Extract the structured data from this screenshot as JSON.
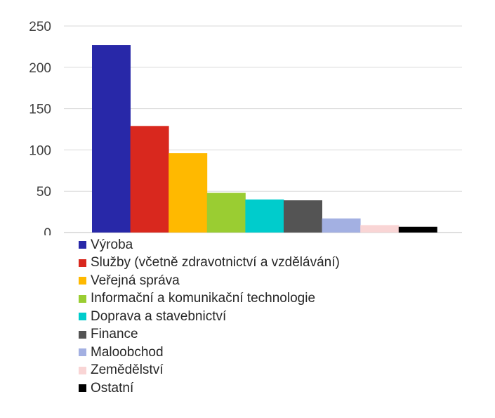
{
  "chart_data": {
    "type": "bar",
    "title": "",
    "xlabel": "",
    "ylabel": "",
    "ylim": [
      0,
      250
    ],
    "yticks": [
      0,
      50,
      100,
      150,
      200,
      250
    ],
    "grid": true,
    "legend_position": "bottom",
    "series": [
      {
        "name": "Výroba",
        "value": 227,
        "color": "#2828a8"
      },
      {
        "name": "Služby (včetně zdravotnictví a vzdělávání)",
        "value": 129,
        "color": "#d9281e"
      },
      {
        "name": "Veřejná správa",
        "value": 96,
        "color": "#ffb900"
      },
      {
        "name": "Informační a komunikační technologie",
        "value": 48,
        "color": "#9acd32"
      },
      {
        "name": "Doprava a stavebnictví",
        "value": 40,
        "color": "#00cccc"
      },
      {
        "name": "Finance",
        "value": 39,
        "color": "#545454"
      },
      {
        "name": "Maloobchod",
        "value": 17,
        "color": "#a3b0e2"
      },
      {
        "name": "Zemědělství",
        "value": 9,
        "color": "#f9d5d5"
      },
      {
        "name": "Ostatní",
        "value": 7,
        "color": "#000000"
      }
    ]
  }
}
